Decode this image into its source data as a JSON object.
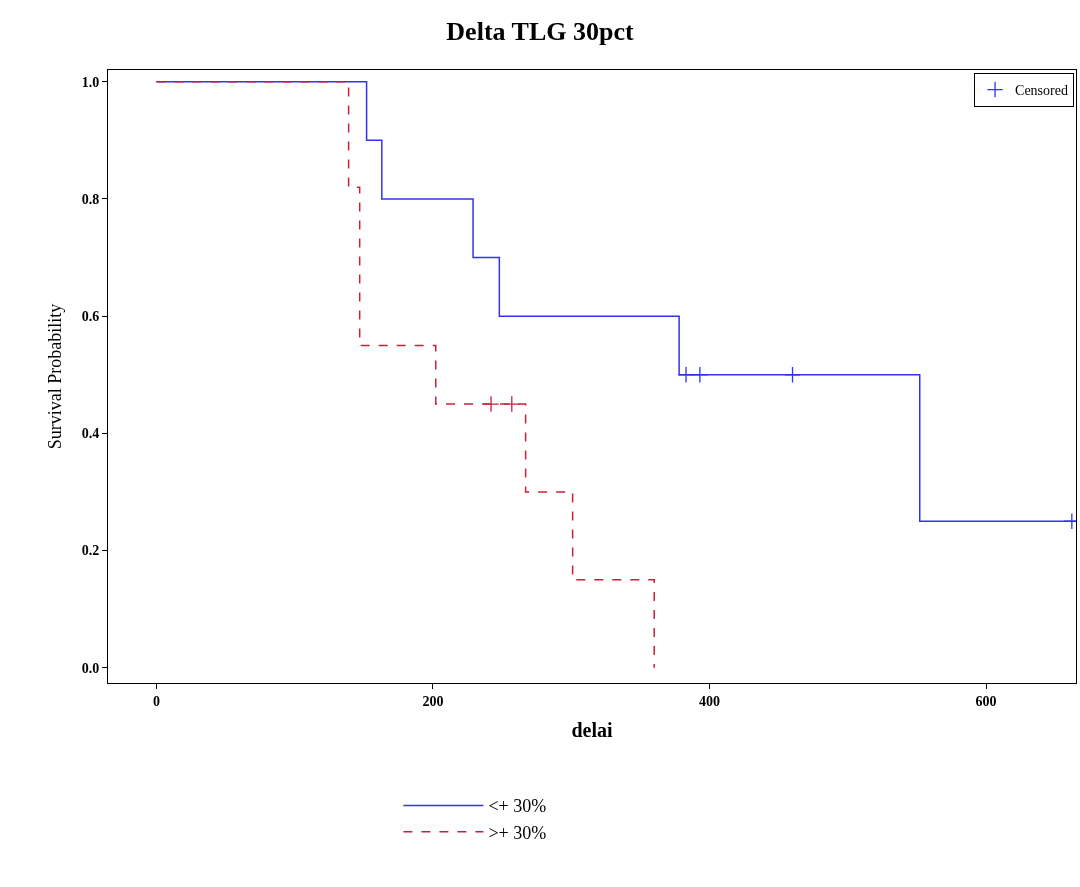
{
  "chart_data": {
    "type": "step",
    "title": "Delta TLG 30pct",
    "xlabel": "delai",
    "ylabel": "Survival Probability",
    "xlim": [
      -35,
      665
    ],
    "ylim": [
      -0.026,
      1.02
    ],
    "xticks": [
      0,
      200,
      400,
      600
    ],
    "yticks": [
      {
        "value": 0,
        "label": "0.0"
      },
      {
        "value": 0.2,
        "label": "0.2"
      },
      {
        "value": 0.4,
        "label": "0.4"
      },
      {
        "value": 0.6,
        "label": "0.6"
      },
      {
        "value": 0.8,
        "label": "0.8"
      },
      {
        "value": 1,
        "label": "1.0"
      }
    ],
    "legend": "bottom",
    "series": [
      {
        "name": "<+ 30%",
        "color": "#3333ee",
        "line_style": "solid",
        "x": [
          0,
          152,
          163,
          229,
          248,
          378,
          552,
          665
        ],
        "values": [
          1,
          0.9,
          0.8,
          0.7,
          0.6,
          0.5,
          0.25,
          0.25
        ]
      },
      {
        "name": ">+ 30%",
        "color": "#c8203c",
        "line_style": "dashed",
        "x": [
          0,
          139,
          147,
          202,
          267,
          301,
          360
        ],
        "values": [
          1,
          0.82,
          0.55,
          0.45,
          0.3,
          0.15,
          0
        ]
      },
      {
        "name": "Censored",
        "type": "scatter",
        "marker": "cross",
        "color": "#3333ee",
        "x": [
          383,
          393,
          460,
          662
        ],
        "values": [
          0.5,
          0.5,
          0.5,
          0.25
        ]
      },
      {
        "type": "scatter",
        "marker": "cross",
        "color": "#c8203c",
        "x": [
          242,
          257
        ],
        "values": [
          0.45,
          0.45
        ]
      }
    ]
  }
}
